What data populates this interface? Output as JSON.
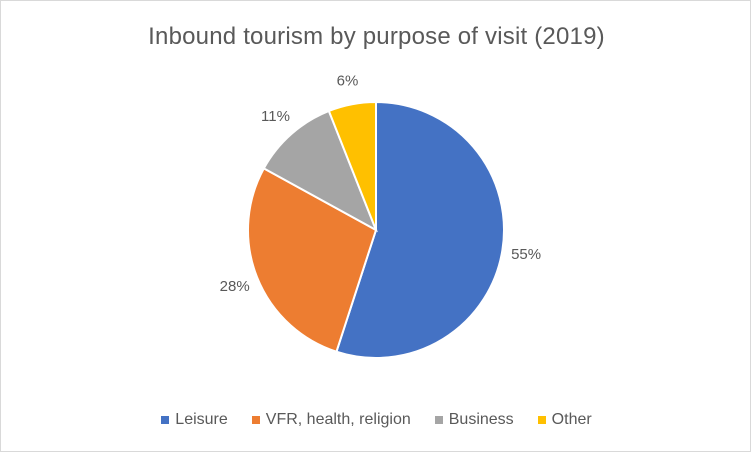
{
  "chart_data": {
    "type": "pie",
    "title": "Inbound tourism by purpose of visit (2019)",
    "slices": [
      {
        "name": "Leisure",
        "value": 55,
        "label": "55%",
        "color": "#4472c4"
      },
      {
        "name": "VFR, health, religion",
        "value": 28,
        "label": "28%",
        "color": "#ed7d31"
      },
      {
        "name": "Business",
        "value": 11,
        "label": "11%",
        "color": "#a5a5a5"
      },
      {
        "name": "Other",
        "value": 6,
        "label": "6%",
        "color": "#ffc000"
      }
    ],
    "legend_position": "bottom",
    "start_angle_deg": 0,
    "direction": "clockwise"
  }
}
